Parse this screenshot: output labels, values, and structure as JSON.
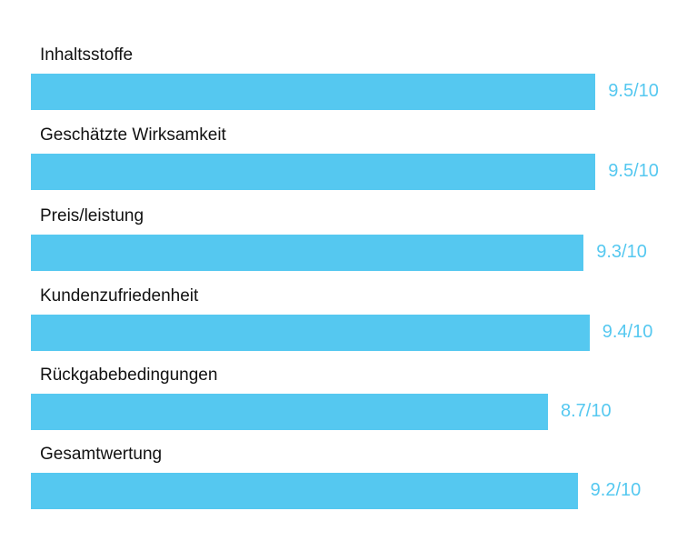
{
  "chart_data": {
    "type": "bar",
    "orientation": "horizontal",
    "categories": [
      "Inhaltsstoffe",
      "Geschätzte Wirksamkeit",
      "Preis/leistung",
      "Kundenzufriedenheit",
      "Rückgabebedingungen",
      "Gesamtwertung"
    ],
    "values": [
      9.5,
      9.5,
      9.3,
      9.4,
      8.7,
      9.2
    ],
    "value_labels": [
      "9.5/10",
      "9.5/10",
      "9.3/10",
      "9.4/10",
      "8.7/10",
      "9.2/10"
    ],
    "xlim": [
      0,
      10
    ],
    "grid": false,
    "legend": "none",
    "colors": {
      "bar": "#55c8f0",
      "value_text": "#55c8f0",
      "label_text": "#111111"
    }
  }
}
